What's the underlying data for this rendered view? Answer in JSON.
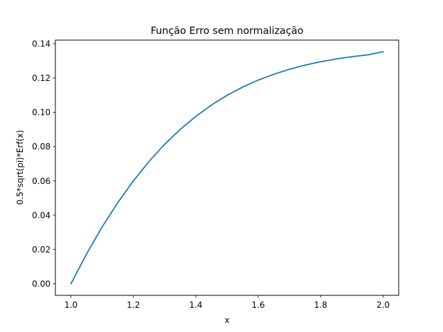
{
  "chart_data": {
    "type": "line",
    "title": "Função Erro sem normalização",
    "xlabel": "x",
    "ylabel": "0.5*sqrt(pi)*Erf(x)",
    "xlim": [
      0.95,
      2.05
    ],
    "ylim": [
      -0.0068,
      0.1421
    ],
    "xticks": [
      1.0,
      1.2,
      1.4,
      1.6,
      1.8,
      2.0
    ],
    "xtick_labels": [
      "1.0",
      "1.2",
      "1.4",
      "1.6",
      "1.8",
      "2.0"
    ],
    "yticks": [
      0.0,
      0.02,
      0.04,
      0.06,
      0.08,
      0.1,
      0.12,
      0.14
    ],
    "ytick_labels": [
      "0.00",
      "0.02",
      "0.04",
      "0.06",
      "0.08",
      "0.10",
      "0.12",
      "0.14"
    ],
    "grid": false,
    "legend": "none",
    "color": "#1f77b4",
    "series": [
      {
        "x": [
          1.0,
          1.05,
          1.1,
          1.15,
          1.2,
          1.25,
          1.3,
          1.35,
          1.4,
          1.45,
          1.5,
          1.55,
          1.6,
          1.65,
          1.7,
          1.75,
          1.8,
          1.85,
          1.9,
          1.95,
          2.0
        ],
        "values": [
          0.0,
          0.0174,
          0.0332,
          0.0473,
          0.06,
          0.0713,
          0.0813,
          0.09,
          0.0976,
          0.1042,
          0.1099,
          0.1147,
          0.1188,
          0.1222,
          0.1251,
          0.1275,
          0.1295,
          0.1311,
          0.1324,
          0.1335,
          0.1353
        ]
      }
    ]
  }
}
